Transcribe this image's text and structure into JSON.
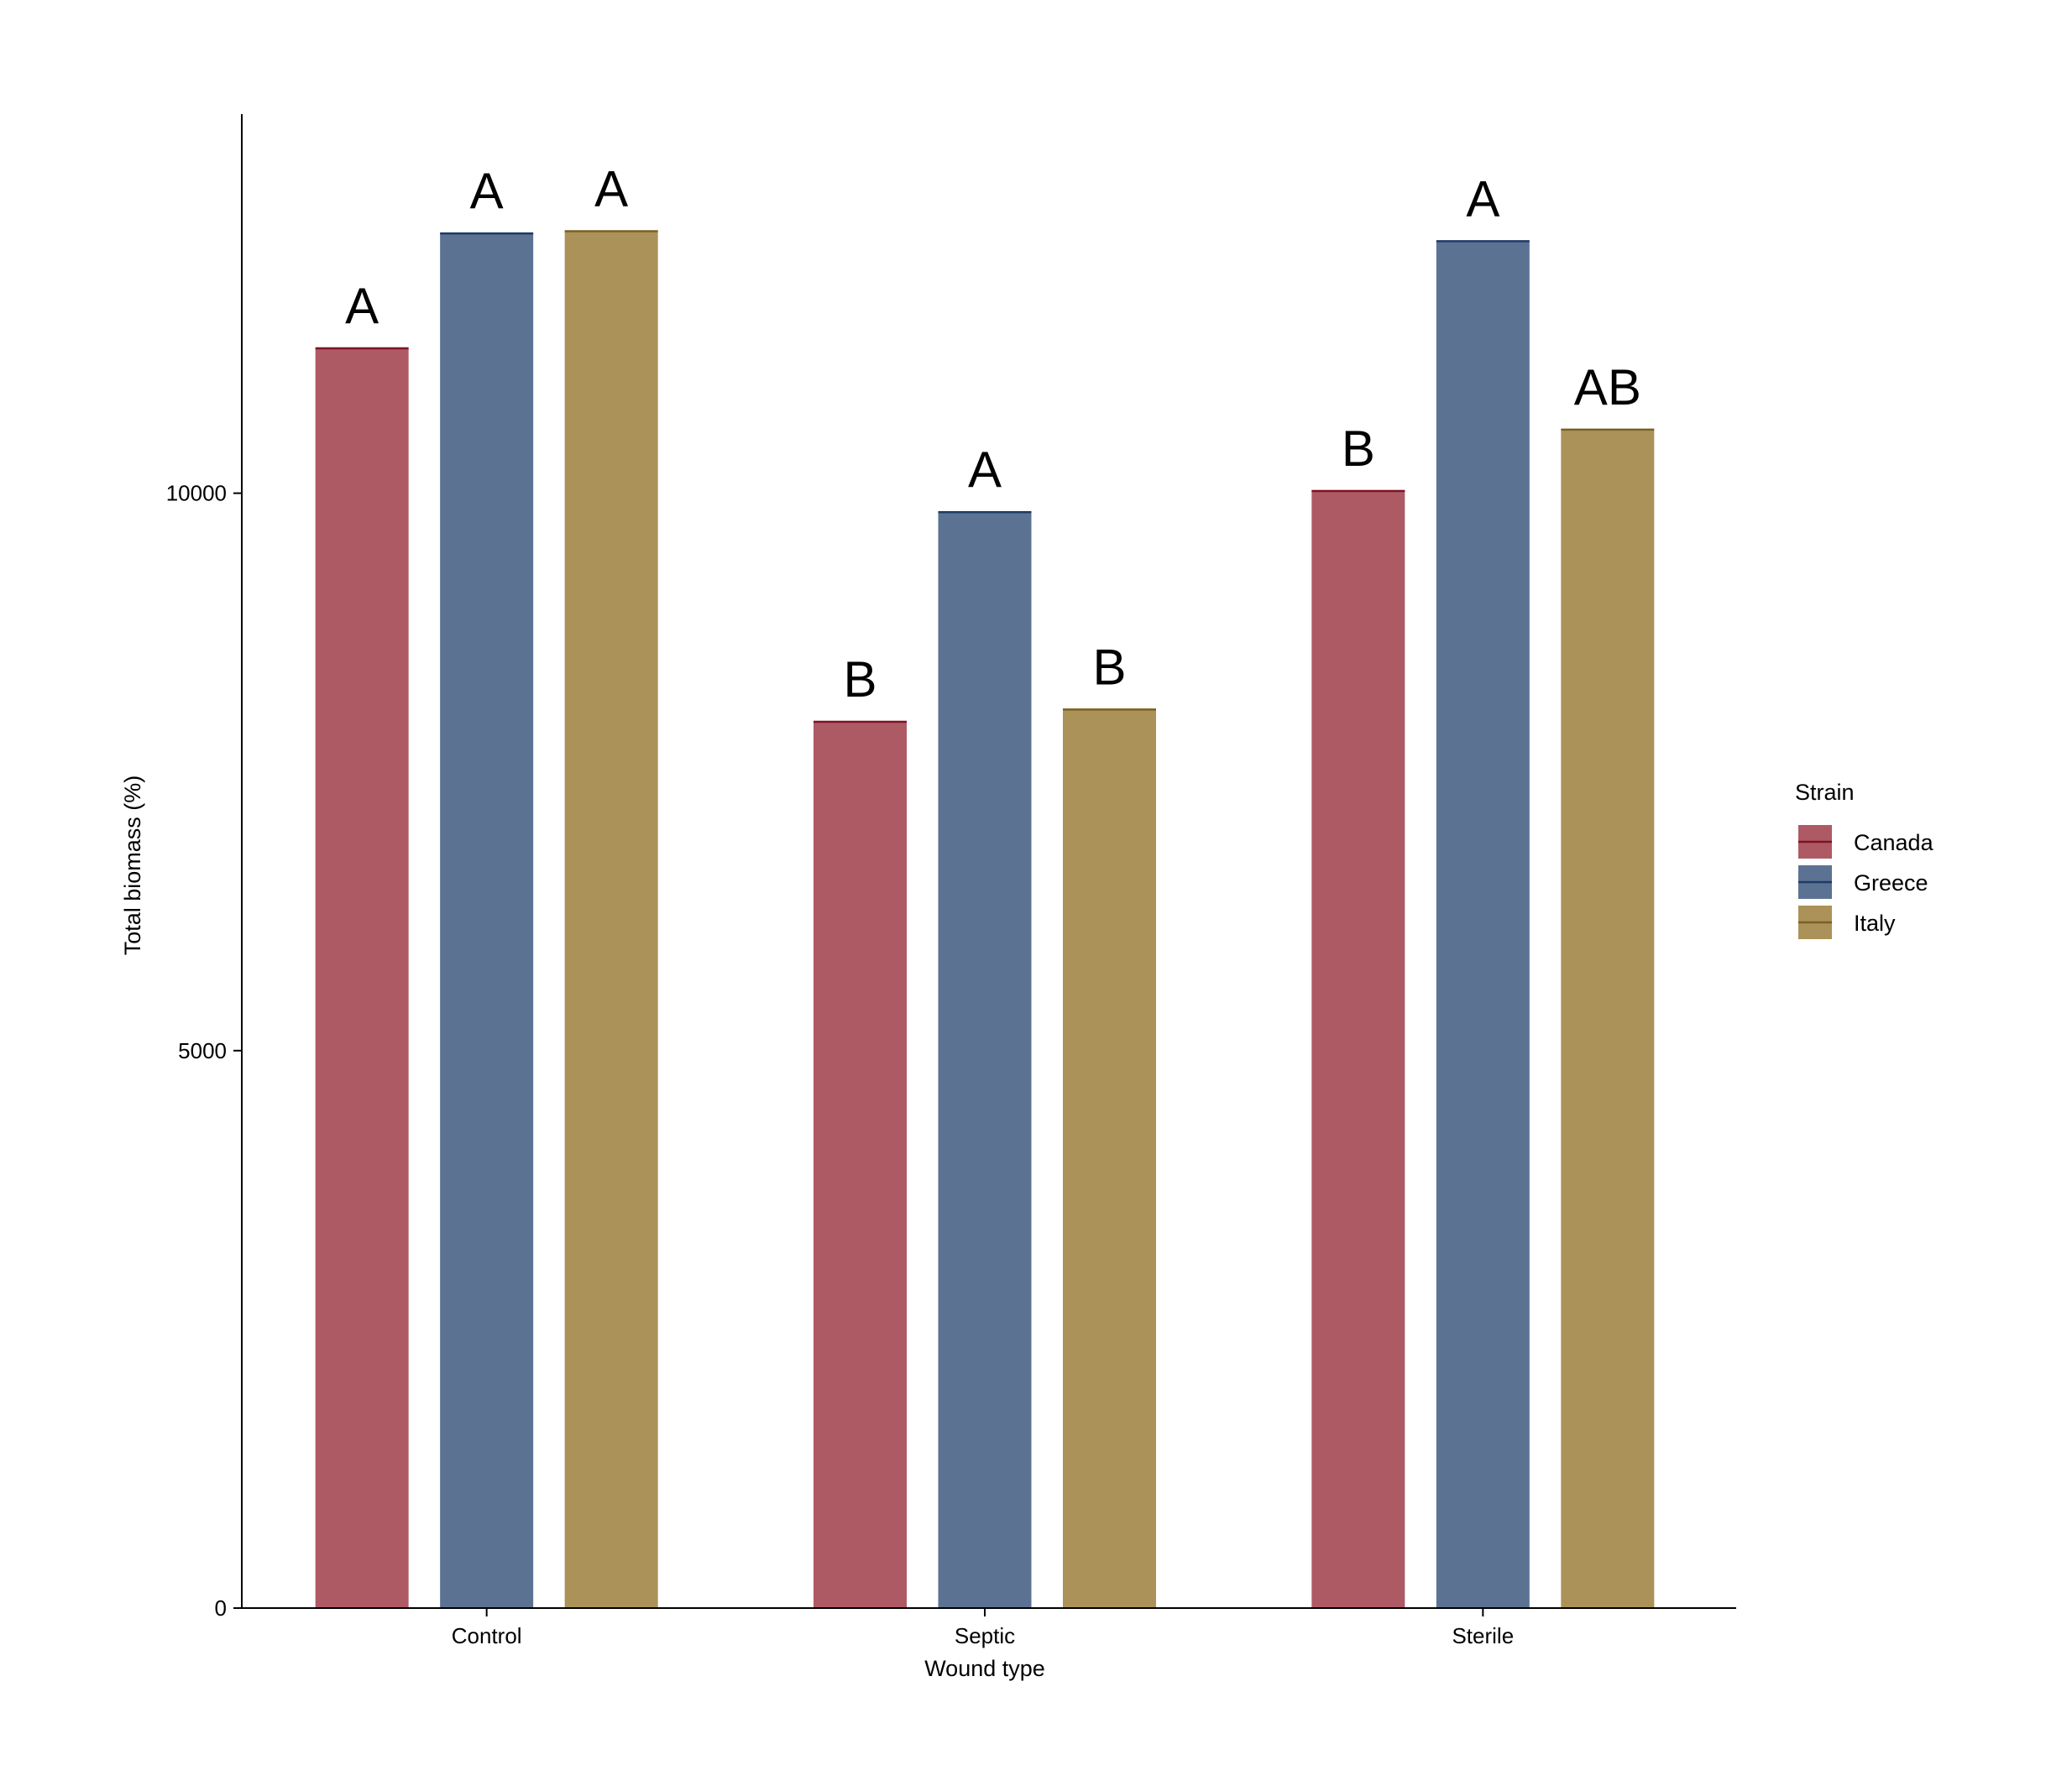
{
  "chart_data": {
    "type": "bar",
    "title": "",
    "xlabel": "Wound type",
    "ylabel": "Total biomass (%)",
    "categories": [
      "Control",
      "Septic",
      "Sterile"
    ],
    "ylim": [
      0,
      13400
    ],
    "yticks": [
      0,
      5000,
      10000
    ],
    "grid": false,
    "legend": {
      "title": "Strain",
      "position": "right",
      "entries": [
        "Canada",
        "Greece",
        "Italy"
      ]
    },
    "series": [
      {
        "name": "Canada",
        "color": "#ae5a65",
        "edge": "#7f1228",
        "values": [
          11300,
          7950,
          10020
        ],
        "letters": [
          "A",
          "B",
          "B"
        ]
      },
      {
        "name": "Greece",
        "color": "#5b7293",
        "edge": "#1e3a66",
        "values": [
          12330,
          9830,
          12260
        ],
        "letters": [
          "A",
          "A",
          "A"
        ]
      },
      {
        "name": "Italy",
        "color": "#ab9258",
        "edge": "#7a6122",
        "values": [
          12350,
          8060,
          10570
        ],
        "letters": [
          "A",
          "B",
          "AB"
        ]
      }
    ]
  }
}
